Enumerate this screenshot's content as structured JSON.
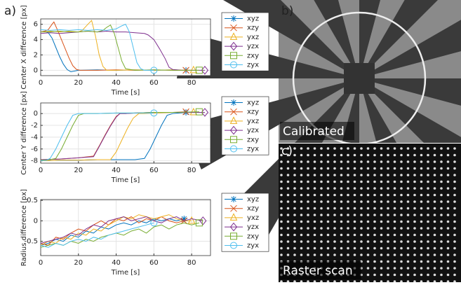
{
  "panel_labels": {
    "a": "a)",
    "b": "b)",
    "c": "c)"
  },
  "images": {
    "b_caption": "Calibrated",
    "c_caption": "Raster scan"
  },
  "chart_data": [
    {
      "type": "line",
      "y_label": "Center X difference [px]",
      "x_label": "Time [s]",
      "xlim": [
        0,
        90
      ],
      "xticks": [
        0,
        20,
        40,
        60,
        80
      ],
      "ylim": [
        -0.7,
        6.7
      ],
      "yticks": [
        0,
        2,
        4,
        6
      ],
      "grid": true,
      "legend": "right",
      "series": [
        {
          "name": "xyz",
          "color": "#0072bd",
          "marker": "star",
          "x": [
            0,
            2,
            4,
            6,
            8,
            10,
            12,
            14,
            16,
            20,
            30,
            40,
            50,
            60,
            70,
            77
          ],
          "values": [
            5,
            5.1,
            4.9,
            4.2,
            3,
            1.8,
            0.8,
            0.1,
            -0.2,
            0,
            0.05,
            0,
            0.05,
            0,
            0.05,
            0
          ]
        },
        {
          "name": "xzy",
          "color": "#d95319",
          "marker": "x",
          "x": [
            0,
            2,
            4,
            6,
            7,
            9,
            11,
            13,
            15,
            17,
            19,
            21,
            30,
            40,
            50,
            60,
            70,
            77
          ],
          "values": [
            5,
            5.1,
            5.3,
            6,
            6.3,
            5.2,
            4,
            2.8,
            1.6,
            0.6,
            0.1,
            0,
            0,
            0.05,
            0,
            0.05,
            0,
            0
          ]
        },
        {
          "name": "yxz",
          "color": "#edb120",
          "marker": "triangle",
          "x": [
            0,
            5,
            10,
            15,
            20,
            22,
            25,
            27,
            29,
            31,
            33,
            35,
            40,
            50,
            60,
            70,
            81
          ],
          "values": [
            5,
            5.1,
            5,
            5.1,
            5,
            5.2,
            6,
            6.5,
            4.5,
            2,
            0.5,
            0,
            0,
            0.05,
            0,
            0.05,
            0
          ]
        },
        {
          "name": "yzx",
          "color": "#7e2f8e",
          "marker": "diamond",
          "x": [
            0,
            5,
            10,
            15,
            20,
            25,
            30,
            35,
            40,
            45,
            50,
            55,
            57,
            60,
            63,
            66,
            68,
            70,
            75,
            80,
            87
          ],
          "values": [
            4.8,
            4.9,
            4.8,
            4.9,
            5,
            5.1,
            5,
            5.1,
            5,
            5,
            4.9,
            4.8,
            4.6,
            4,
            2.8,
            1.5,
            0.4,
            0.1,
            0,
            0,
            0
          ]
        },
        {
          "name": "zxy",
          "color": "#77ac30",
          "marker": "square",
          "x": [
            0,
            5,
            10,
            15,
            20,
            25,
            30,
            33,
            35,
            37,
            39,
            41,
            43,
            45,
            50,
            60,
            70,
            84
          ],
          "values": [
            5,
            5,
            5.1,
            5,
            5,
            5.1,
            5,
            5.2,
            5.6,
            5.9,
            4.8,
            3,
            1.2,
            0.2,
            0,
            0.05,
            0,
            0
          ]
        },
        {
          "name": "zyx",
          "color": "#4dbeee",
          "marker": "circle",
          "x": [
            0,
            5,
            10,
            15,
            20,
            25,
            30,
            35,
            40,
            43,
            45,
            47,
            49,
            51,
            53,
            55,
            60
          ],
          "values": [
            5.3,
            5.2,
            5.3,
            5.2,
            5.3,
            5.2,
            5.3,
            5.2,
            5.4,
            5.8,
            6,
            5,
            3,
            1,
            0.2,
            0,
            0
          ]
        }
      ]
    },
    {
      "type": "line",
      "y_label": "Center Y difference [px]",
      "x_label": "Time [s]",
      "xlim": [
        0,
        90
      ],
      "xticks": [
        0,
        20,
        40,
        60,
        80
      ],
      "ylim": [
        -8.4,
        1.8
      ],
      "yticks": [
        -8,
        -6,
        -4,
        -2,
        0
      ],
      "grid": true,
      "legend": "right",
      "series": [
        {
          "name": "xyz",
          "color": "#0072bd",
          "marker": "star",
          "x": [
            0,
            10,
            20,
            30,
            40,
            50,
            55,
            58,
            61,
            64,
            67,
            70,
            73,
            77
          ],
          "values": [
            -8,
            -7.9,
            -7.9,
            -7.8,
            -7.8,
            -7.8,
            -7.6,
            -6,
            -4,
            -2,
            -0.3,
            0,
            0.1,
            0.2
          ]
        },
        {
          "name": "xzy",
          "color": "#d95319",
          "marker": "x",
          "x": [
            0,
            10,
            20,
            28,
            31,
            34,
            37,
            40,
            42,
            45,
            50,
            60,
            70,
            77
          ],
          "values": [
            -7.8,
            -7.7,
            -7.5,
            -7.2,
            -5.5,
            -3.7,
            -2,
            -0.5,
            0,
            0,
            0.1,
            0.2,
            0.2,
            0.3
          ]
        },
        {
          "name": "yxz",
          "color": "#edb120",
          "marker": "triangle",
          "x": [
            0,
            10,
            20,
            30,
            37,
            40,
            43,
            46,
            49,
            52,
            55,
            60,
            70,
            81
          ],
          "values": [
            -8,
            -7.9,
            -7.9,
            -7.8,
            -7.8,
            -6.5,
            -4.5,
            -2.5,
            -0.8,
            0,
            0,
            0.1,
            0.2,
            0.2
          ]
        },
        {
          "name": "yzx",
          "color": "#7e2f8e",
          "marker": "diamond",
          "x": [
            0,
            10,
            20,
            28,
            31,
            34,
            37,
            40,
            42,
            45,
            50,
            60,
            70,
            80,
            87
          ],
          "values": [
            -7.8,
            -7.7,
            -7.5,
            -7.3,
            -5.6,
            -3.8,
            -2.1,
            -0.6,
            0,
            0,
            0.1,
            0.2,
            0.2,
            0.2,
            0.2
          ]
        },
        {
          "name": "zxy",
          "color": "#77ac30",
          "marker": "square",
          "x": [
            0,
            5,
            8,
            11,
            14,
            17,
            20,
            23,
            30,
            40,
            50,
            60,
            70,
            84
          ],
          "values": [
            -7.9,
            -7.8,
            -7.6,
            -6,
            -4,
            -2,
            -0.3,
            0,
            0,
            0.1,
            0.1,
            0.2,
            0.2,
            0.3
          ]
        },
        {
          "name": "zyx",
          "color": "#4dbeee",
          "marker": "circle",
          "x": [
            0,
            3,
            5,
            8,
            11,
            14,
            17,
            20,
            30,
            40,
            50,
            60
          ],
          "values": [
            -8,
            -7.9,
            -7.6,
            -6,
            -4,
            -2,
            -0.3,
            0,
            0,
            0.1,
            0.1,
            0.1
          ]
        }
      ]
    },
    {
      "type": "line",
      "y_label": "Radius difference [px]",
      "x_label": "Time [s]",
      "xlim": [
        0,
        90
      ],
      "xticks": [
        0,
        20,
        40,
        60,
        80
      ],
      "ylim": [
        -0.85,
        0.52
      ],
      "yticks": [
        -0.5,
        0,
        0.5
      ],
      "grid": true,
      "legend": "right",
      "series": [
        {
          "name": "xyz",
          "color": "#0072bd",
          "marker": "star",
          "x": [
            0,
            4,
            8,
            12,
            16,
            20,
            24,
            28,
            32,
            36,
            40,
            44,
            48,
            52,
            56,
            60,
            64,
            68,
            72,
            76
          ],
          "values": [
            -0.6,
            -0.55,
            -0.45,
            -0.5,
            -0.35,
            -0.4,
            -0.25,
            -0.3,
            -0.15,
            -0.2,
            -0.1,
            -0.05,
            -0.1,
            0,
            -0.05,
            0.05,
            0,
            0.05,
            0,
            0.05
          ]
        },
        {
          "name": "xzy",
          "color": "#d95319",
          "marker": "x",
          "x": [
            0,
            4,
            8,
            12,
            16,
            20,
            24,
            28,
            32,
            36,
            40,
            44,
            48,
            52,
            56,
            60,
            64,
            68,
            72,
            76
          ],
          "values": [
            -0.55,
            -0.6,
            -0.4,
            -0.45,
            -0.3,
            -0.2,
            -0.25,
            -0.1,
            0,
            -0.1,
            0.05,
            0,
            0.1,
            -0.05,
            0.05,
            0,
            0.1,
            0,
            -0.05,
            0
          ]
        },
        {
          "name": "yxz",
          "color": "#edb120",
          "marker": "triangle",
          "x": [
            0,
            4,
            8,
            12,
            16,
            20,
            24,
            28,
            32,
            36,
            40,
            44,
            48,
            52,
            56,
            60,
            64,
            68,
            72,
            76,
            80
          ],
          "values": [
            -0.6,
            -0.5,
            -0.55,
            -0.4,
            -0.45,
            -0.3,
            -0.35,
            -0.2,
            -0.25,
            -0.1,
            0,
            0.1,
            0.05,
            0.15,
            0.1,
            0.05,
            0.1,
            0.15,
            0.05,
            0,
            0
          ]
        },
        {
          "name": "yzx",
          "color": "#7e2f8e",
          "marker": "diamond",
          "x": [
            0,
            4,
            8,
            12,
            16,
            20,
            24,
            28,
            32,
            36,
            40,
            44,
            48,
            52,
            56,
            60,
            64,
            68,
            72,
            76,
            80,
            86
          ],
          "values": [
            -0.55,
            -0.5,
            -0.45,
            -0.4,
            -0.3,
            -0.35,
            -0.2,
            -0.1,
            -0.15,
            0,
            0.05,
            0.1,
            0,
            0.05,
            0.1,
            0,
            -0.05,
            0.05,
            0.1,
            0,
            0.05,
            0
          ]
        },
        {
          "name": "zxy",
          "color": "#77ac30",
          "marker": "square",
          "x": [
            0,
            4,
            8,
            12,
            16,
            20,
            24,
            28,
            32,
            36,
            40,
            44,
            48,
            52,
            56,
            60,
            64,
            68,
            72,
            76,
            80,
            84
          ],
          "values": [
            -0.65,
            -0.6,
            -0.55,
            -0.6,
            -0.5,
            -0.55,
            -0.45,
            -0.5,
            -0.4,
            -0.35,
            -0.3,
            -0.35,
            -0.25,
            -0.2,
            -0.3,
            -0.15,
            -0.1,
            -0.2,
            -0.1,
            -0.05,
            -0.1,
            -0.05
          ]
        },
        {
          "name": "zyx",
          "color": "#4dbeee",
          "marker": "circle",
          "x": [
            0,
            4,
            8,
            12,
            16,
            20,
            24,
            28,
            32,
            36,
            40,
            44,
            48,
            52,
            56,
            60
          ],
          "values": [
            -0.6,
            -0.65,
            -0.55,
            -0.6,
            -0.5,
            -0.45,
            -0.5,
            -0.4,
            -0.45,
            -0.35,
            -0.3,
            -0.25,
            -0.2,
            -0.15,
            -0.1,
            -0.05
          ]
        }
      ]
    }
  ]
}
